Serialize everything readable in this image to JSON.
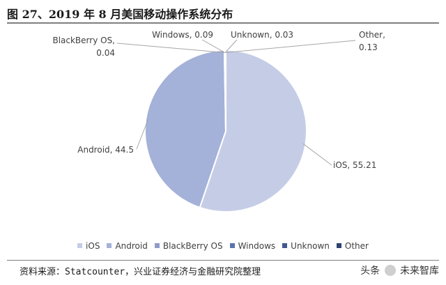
{
  "figure": {
    "title": "图 27、2019 年 8 月美国移动操作系统分布",
    "source": "资料来源：Statcounter，兴业证券经济与金融研究院整理",
    "watermark_prefix": "头条",
    "watermark_suffix": "未来智库"
  },
  "chart_data": {
    "type": "pie",
    "title": "",
    "categories": [
      "iOS",
      "Android",
      "BlackBerry OS",
      "Windows",
      "Unknown",
      "Other"
    ],
    "values": [
      55.21,
      44.5,
      0.04,
      0.09,
      0.03,
      0.13
    ],
    "value_labels": [
      "55.21",
      "44.5",
      "0.04",
      "0.09",
      "0.03",
      "0.13"
    ],
    "colors": [
      "#c5cde6",
      "#a4b1d8",
      "#8f9cc9",
      "#5b74ad",
      "#41588f",
      "#2e4270"
    ],
    "legend_position": "bottom",
    "order_clockwise_from_top": [
      "iOS",
      "Android",
      "BlackBerry OS",
      "Windows",
      "Unknown",
      "Other"
    ]
  }
}
